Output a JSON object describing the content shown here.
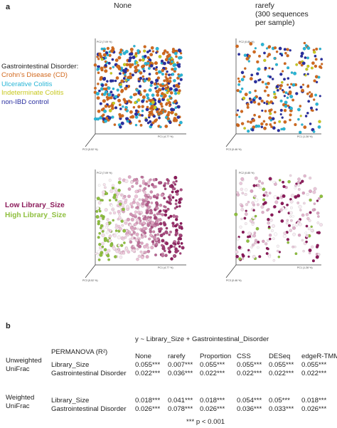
{
  "panel_a": {
    "label": "a",
    "columns": [
      {
        "title": "None"
      },
      {
        "title_lines": [
          "rarefy",
          "(300 sequences",
          "per sample)"
        ]
      }
    ],
    "legend_disorder": {
      "title": "Gastrointestinal Disorder:",
      "items": [
        {
          "label": "Crohn's Disease (CD)",
          "color": "#d2691e"
        },
        {
          "label": "Ulcerative Colitis",
          "color": "#29b6d6"
        },
        {
          "label": "Indeterminate Colitis",
          "color": "#c8c81e"
        },
        {
          "label": "non-IBD control",
          "color": "#2a2fa0"
        }
      ]
    },
    "legend_library": {
      "items": [
        {
          "label": "Low Library_Size",
          "color": "#8b1a5a"
        },
        {
          "label": "High Library_Size",
          "color": "#8fbf3f"
        }
      ]
    },
    "plots": {
      "top_left": {
        "pc1": "PC1 (4.77 %)",
        "pc2": "PC2 (7.09 %)",
        "pc3": "PC3 (5.52 %)"
      },
      "top_right": {
        "pc1": "PC1 (1.28 %)",
        "pc2": "PC2 (0.85 %)",
        "pc3": "PC3 (0.46 %)"
      },
      "bottom_left": {
        "pc1": "PC1 (4.77 %)",
        "pc2": "PC2 (7.09 %)",
        "pc3": "PC3 (5.52 %)"
      },
      "bottom_right": {
        "pc1": "PC1 (1.28 %)",
        "pc2": "PC2 (0.85 %)",
        "pc3": "PC3 (0.46 %)"
      }
    }
  },
  "panel_b": {
    "label": "b",
    "formula": "y ~ Library_Size + Gastrointestinal_Disorder",
    "header_label": "PERMANOVA (R²)",
    "methods": [
      "None",
      "rarefy",
      "Proportion",
      "CSS",
      "DESeq",
      "edgeR-TMM"
    ],
    "groups": [
      {
        "name_lines": [
          "Unweighted",
          "UniFrac"
        ],
        "rows": [
          {
            "variable": "Library_Size",
            "values": [
              "0.055***",
              "0.007***",
              "0.055***",
              "0.055***",
              "0.055***",
              "0.055***"
            ]
          },
          {
            "variable": "Gastrointestinal Disorder",
            "values": [
              "0.022***",
              "0.036***",
              "0.022***",
              "0.022***",
              "0.022***",
              "0.022***"
            ]
          }
        ]
      },
      {
        "name_lines": [
          "Weighted",
          "UniFrac"
        ],
        "rows": [
          {
            "variable": "Library_Size",
            "values": [
              "0.018***",
              "0.041***",
              "0.018***",
              "0.054***",
              "0.05***",
              "0.018***"
            ]
          },
          {
            "variable": "Gastrointestinal Disorder",
            "values": [
              "0.026***",
              "0.078***",
              "0.026***",
              "0.036***",
              "0.033***",
              "0.026***"
            ]
          }
        ]
      }
    ],
    "footnote": "*** p < 0.001"
  }
}
